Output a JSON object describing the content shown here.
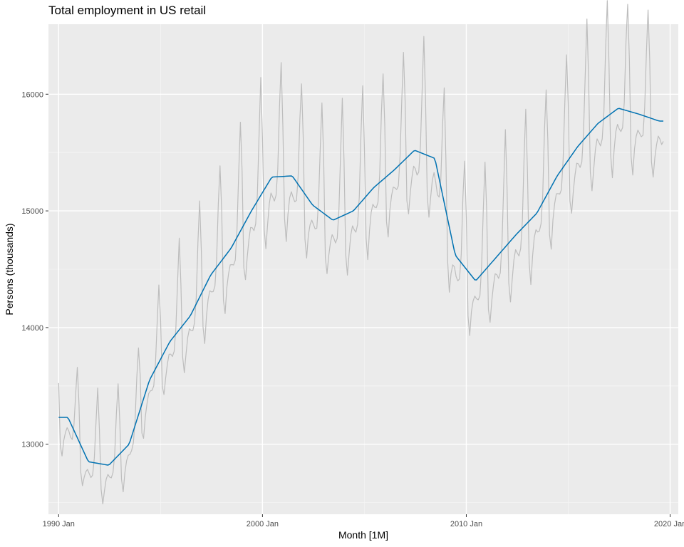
{
  "chart_data": {
    "type": "line",
    "title": "Total employment in US retail",
    "xlabel": "Month [1M]",
    "ylabel": "Persons (thousands)",
    "x_start": "1990 Jan",
    "x_end": "2019 Sep",
    "xlim": [
      1989.5,
      2020.4
    ],
    "ylim": [
      12400,
      16600
    ],
    "x_ticks": [
      {
        "value": 1990,
        "label": "1990 Jan"
      },
      {
        "value": 2000,
        "label": "2000 Jan"
      },
      {
        "value": 2010,
        "label": "2010 Jan"
      },
      {
        "value": 2020,
        "label": "2020 Jan"
      }
    ],
    "x_minor_ticks": [
      1995,
      2005,
      2015
    ],
    "y_ticks": [
      {
        "value": 13000,
        "label": "13000"
      },
      {
        "value": 14000,
        "label": "14000"
      },
      {
        "value": 15000,
        "label": "15000"
      },
      {
        "value": 16000,
        "label": "16000"
      }
    ],
    "y_minor_ticks": [
      12500,
      13500,
      14500,
      15500
    ],
    "grid": true,
    "legend": "none",
    "seasonal_amplitude": [
      1.4,
      -1.1,
      -1.6,
      -1.0,
      -0.6,
      -0.4,
      -0.5,
      -0.6,
      -0.5,
      0.2,
      1.7,
      2.9
    ],
    "series": [
      {
        "role": "data",
        "color": "#bdbdbd",
        "trend_annual": [
          13230,
          12850,
          12820,
          13000,
          13550,
          13880,
          14100,
          14450,
          14680,
          15000,
          15290,
          15300,
          15050,
          14920,
          15000,
          15200,
          15350,
          15520,
          15450,
          14620,
          14400,
          14600,
          14800,
          14980,
          15300,
          15550,
          15750,
          15880,
          15830,
          15770
        ]
      },
      {
        "role": "trend",
        "color": "#0072b2",
        "trend_annual": [
          13230,
          12850,
          12820,
          13000,
          13550,
          13880,
          14100,
          14450,
          14680,
          15000,
          15290,
          15300,
          15050,
          14920,
          15000,
          15200,
          15350,
          15520,
          15450,
          14620,
          14400,
          14600,
          14800,
          14980,
          15300,
          15550,
          15750,
          15880,
          15830,
          15770
        ]
      }
    ]
  }
}
